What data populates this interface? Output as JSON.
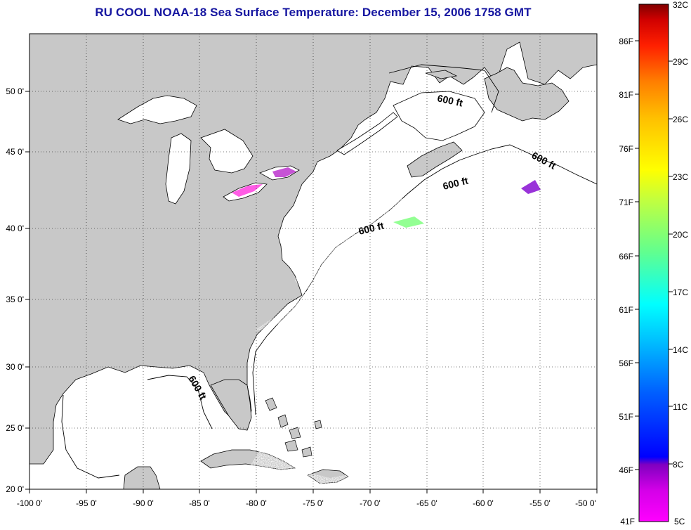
{
  "title": "RU COOL  NOAA-18  Sea Surface Temperature:  December 15, 2006 1758 GMT",
  "map": {
    "lon_range": [
      -100,
      -50
    ],
    "lat_range": [
      20,
      52
    ],
    "lon_ticks": [
      "-100 0'",
      "-95 0'",
      "-90 0'",
      "-85 0'",
      "-80 0'",
      "-75 0'",
      "-70 0'",
      "-65 0'",
      "-60 0'",
      "-55 0'",
      "-50 0'"
    ],
    "lat_ticks": [
      "20 0'",
      "25 0'",
      "30 0'",
      "35 0'",
      "40 0'",
      "45 0'",
      "50 0'"
    ],
    "land_color": "#c8c8c8",
    "water_color": "#ffffff",
    "grid": "dotted",
    "contour_labels": [
      "600 ft",
      "600 ft",
      "600 ft",
      "600 ft",
      "600 ft"
    ]
  },
  "colorbar": {
    "celsius_labels": [
      "32C",
      "29C",
      "26C",
      "23C",
      "20C",
      "17C",
      "14C",
      "11C",
      "8C",
      "5C"
    ],
    "fahrenheit_labels": [
      "86F",
      "81F",
      "76F",
      "71F",
      "66F",
      "61F",
      "56F",
      "51F",
      "46F",
      "41F"
    ],
    "colors": [
      "#8b0000",
      "#ff0000",
      "#ff7f00",
      "#ffd700",
      "#ffff00",
      "#7fff7f",
      "#00ffff",
      "#007fff",
      "#0000ff",
      "#9400d3",
      "#ff00ff"
    ]
  }
}
